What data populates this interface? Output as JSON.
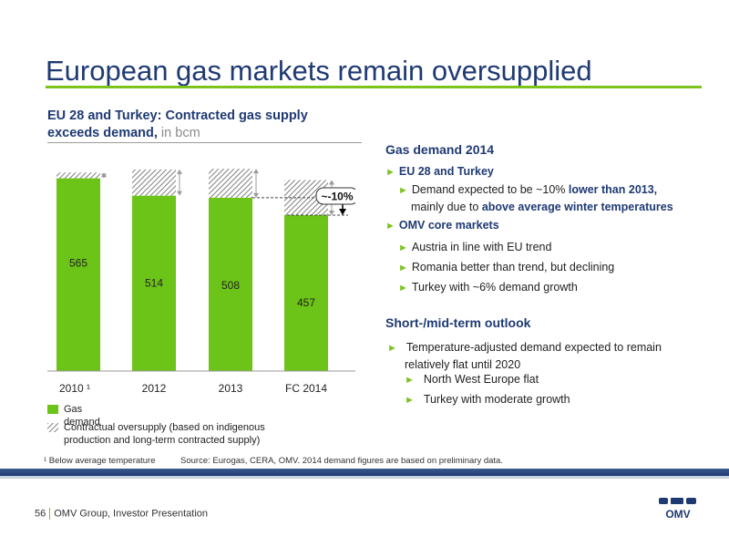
{
  "title": "European gas markets remain oversupplied",
  "chart_heading": {
    "main": "EU 28 and Turkey: Contracted gas supply exceeds demand,",
    "unit": " in bcm"
  },
  "chart_data": {
    "type": "bar",
    "categories": [
      "2010 ¹",
      "2012",
      "2013",
      "FC 2014"
    ],
    "series": [
      {
        "name": "Gas demand",
        "values": [
          565,
          514,
          508,
          457
        ],
        "color": "#6cc418"
      },
      {
        "name": "Contractual oversupply (based on indigenous production and long-term contracted supply)",
        "values": [
          17,
          77,
          85,
          103
        ],
        "pattern": "hatched"
      }
    ],
    "stacked": true,
    "callout": "~-10%",
    "ylim": [
      0,
      620
    ]
  },
  "legend": {
    "gas_demand": "Gas demand",
    "oversupply_line1": "Contractual oversupply (based on indigenous",
    "oversupply_line2": "production and long-term contracted supply)"
  },
  "right": {
    "h1": "Gas demand 2014",
    "eu_label": "EU 28 and Turkey",
    "eu_b1_a": "Demand expected to be ~10% ",
    "eu_b1_b": "lower than 2013,",
    "eu_b1_c": "mainly due to ",
    "eu_b1_d": "above average winter temperatures",
    "omv_label": "OMV core markets",
    "omv_b1": "Austria in line with EU trend",
    "omv_b2": "Romania better than trend, but declining",
    "omv_b3": "Turkey with ~6% demand growth",
    "h2": "Short-/mid-term outlook",
    "out_b1_l1": "Temperature-adjusted demand expected to remain",
    "out_b1_l2": "relatively flat until 2020",
    "out_b2": "North West Europe flat",
    "out_b3": "Turkey with moderate growth",
    "arrow": "►"
  },
  "footnote": {
    "note": "¹ Below average temperature",
    "source": "Source: Eurogas, CERA, OMV. 2014 demand figures are based on preliminary data."
  },
  "footer": {
    "page_number": "56",
    "text": "OMV Group, Investor Presentation",
    "logo_text": "OMV"
  }
}
